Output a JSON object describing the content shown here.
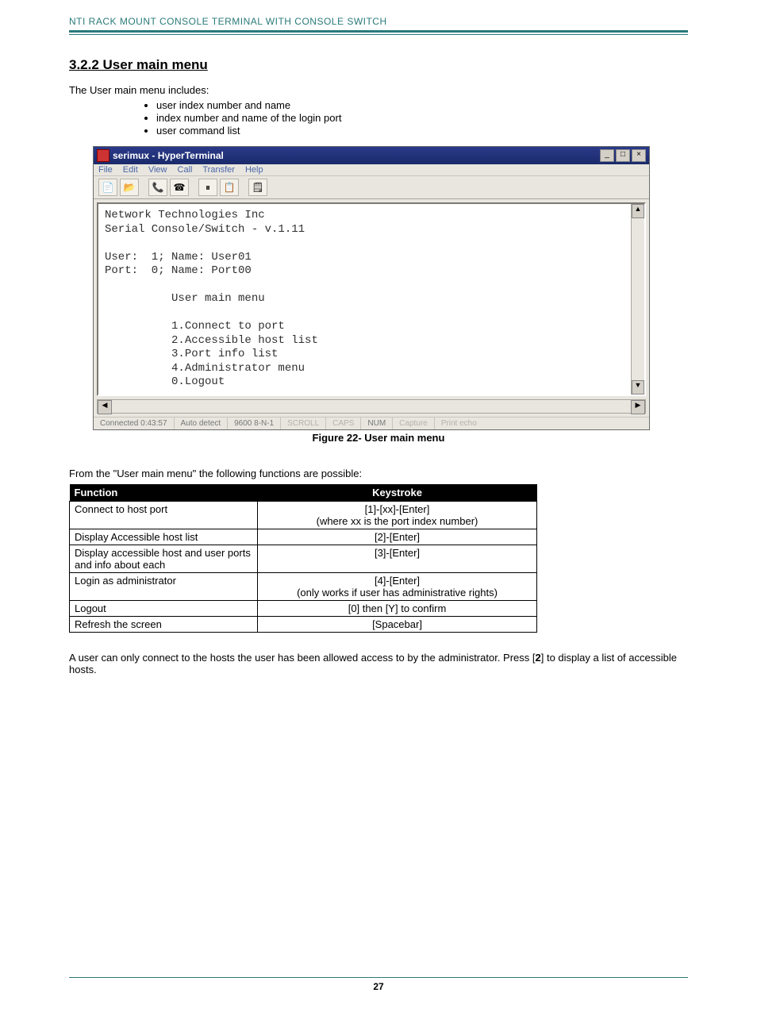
{
  "header": {
    "title": "NTI RACK MOUNT CONSOLE TERMINAL WITH CONSOLE SWITCH"
  },
  "section": {
    "heading": "3.2.2 User main menu",
    "intro": "The User main menu includes:"
  },
  "bullets": [
    "user index number and name",
    "index number and name of the login port",
    "user command list"
  ],
  "ht": {
    "title": "serimux - HyperTerminal",
    "menus": [
      "File",
      "Edit",
      "View",
      "Call",
      "Transfer",
      "Help"
    ],
    "toolbar_icons": [
      "📄",
      "📂",
      "📞",
      "☎",
      "⏸",
      "📋",
      "🗒"
    ],
    "win_min": "_",
    "win_max": "□",
    "win_close": "×",
    "scroll_up": "▲",
    "scroll_down": "▼",
    "scroll_left": "◀",
    "scroll_right": "▶",
    "term": "Network Technologies Inc\nSerial Console/Switch - v.1.11\n\nUser:  1; Name: User01\nPort:  0; Name: Port00\n\n          User main menu\n\n          1.Connect to port\n          2.Accessible host list\n          3.Port info list\n          4.Administrator menu\n          0.Logout",
    "status": {
      "connected": "Connected 0:43:57",
      "detect": "Auto detect",
      "settings": "9600 8-N-1",
      "scroll": "SCROLL",
      "caps": "CAPS",
      "num": "NUM",
      "capture": "Capture",
      "echo": "Print echo"
    }
  },
  "caption": "Figure 22- User main menu",
  "lead": "From the \"User main menu\" the following functions are possible:",
  "table": {
    "headers": {
      "fn": "Function",
      "ks": "Keystroke"
    },
    "rows": [
      {
        "fn": "Connect to host port",
        "ks": "[1]-[xx]-[Enter]\n(where xx is the port index number)"
      },
      {
        "fn": "Display Accessible host list",
        "ks": "[2]-[Enter]"
      },
      {
        "fn": "Display accessible host and user ports and info about each",
        "ks": "[3]-[Enter]"
      },
      {
        "fn": "Login as administrator",
        "ks": "[4]-[Enter]\n(only works if user has administrative rights)"
      },
      {
        "fn": "Logout",
        "ks": "[0]  then [Y] to confirm"
      },
      {
        "fn": "Refresh the screen",
        "ks": "[Spacebar]"
      }
    ]
  },
  "note": {
    "pre": "A user can only connect to the hosts the user has been allowed access to by the administrator.   Press [",
    "key": "2",
    "post": "] to display a list of accessible hosts."
  },
  "footer": {
    "page": "27"
  }
}
